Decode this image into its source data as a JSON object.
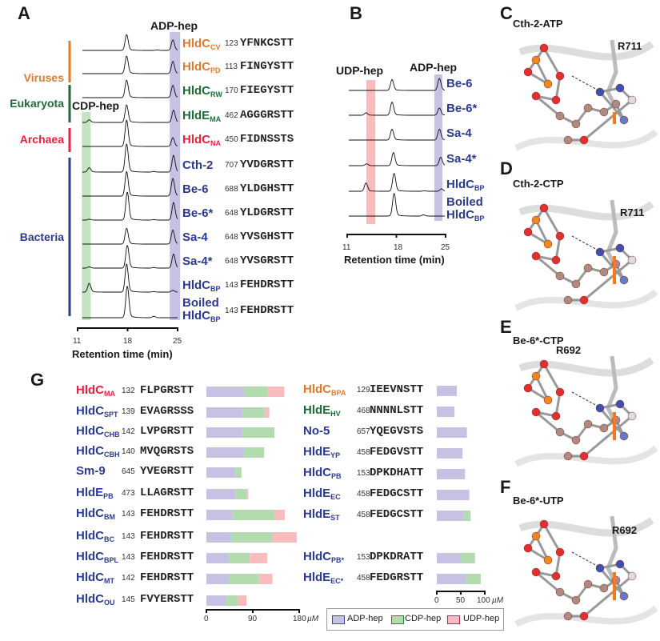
{
  "panels": {
    "a": "A",
    "b": "B",
    "c": "C",
    "d": "D",
    "e": "E",
    "f": "F",
    "g": "G"
  },
  "colors": {
    "viruses": "#e07a2e",
    "eukaryota": "#1e6b35",
    "archaea": "#e8213f",
    "bacteria": "#2b3a8c",
    "adp": "#c6c2e4",
    "cdp": "#b2dcb0",
    "udp": "#f8bcbf"
  },
  "panel_a": {
    "band_adp": "ADP-hep",
    "band_cdp": "CDP-hep",
    "groups": [
      {
        "label": "Viruses",
        "color": "viruses"
      },
      {
        "label": "Eukaryota",
        "color": "eukaryota"
      },
      {
        "label": "Archaea",
        "color": "archaea"
      },
      {
        "label": "Bacteria",
        "color": "bacteria"
      }
    ],
    "xlabel": "Retention time (min)",
    "xticks": [
      "11",
      "18",
      "25"
    ],
    "xlim": [
      11,
      25
    ],
    "rows": [
      {
        "name": "HldC",
        "sub": "CV",
        "color": "viruses",
        "pos": "123",
        "seq": "YFNKCSTT",
        "peaks": [
          [
            17.5,
            0.9
          ],
          [
            24.3,
            0.6
          ],
          [
            22,
            0.03
          ]
        ]
      },
      {
        "name": "HldC",
        "sub": "PD",
        "color": "viruses",
        "pos": "113",
        "seq": "FINGYSTT",
        "peaks": [
          [
            17.5,
            1.0
          ],
          [
            24.3,
            0.7
          ]
        ]
      },
      {
        "name": "HldC",
        "sub": "RW",
        "color": "eukaryota",
        "pos": "170",
        "seq": "FIEGYSTT",
        "peaks": [
          [
            17.5,
            1.0
          ],
          [
            24.3,
            0.7
          ]
        ]
      },
      {
        "name": "HldE",
        "sub": "MA",
        "color": "eukaryota",
        "pos": "462",
        "seq": "AGGGRSTT",
        "peaks": [
          [
            12,
            0.15
          ],
          [
            17.5,
            1.0
          ],
          [
            24.4,
            0.7
          ]
        ]
      },
      {
        "name": "HldC",
        "sub": "NA",
        "color": "archaea",
        "pos": "450",
        "seq": "FIDNSSTS",
        "peaks": [
          [
            17.5,
            1.5
          ],
          [
            24.3,
            0.5
          ]
        ]
      },
      {
        "name": "Cth-2",
        "sub": "",
        "color": "bacteria",
        "pos": "707",
        "seq": "YVDGRSTT",
        "peaks": [
          [
            12,
            0.25
          ],
          [
            17.5,
            1.6
          ],
          [
            24.4,
            0.95
          ],
          [
            21.5,
            0.03
          ]
        ]
      },
      {
        "name": "Be-6",
        "sub": "",
        "color": "bacteria",
        "pos": "688",
        "seq": "YLDGHSTT",
        "peaks": [
          [
            17.5,
            1.4
          ],
          [
            24.3,
            1.0
          ]
        ]
      },
      {
        "name": "Be-6*",
        "sub": "",
        "color": "bacteria",
        "pos": "648",
        "seq": "YLDGRSTT",
        "peaks": [
          [
            12,
            0.05
          ],
          [
            17.6,
            1.6
          ],
          [
            24.4,
            1.0
          ],
          [
            21.5,
            0.03
          ]
        ]
      },
      {
        "name": "Sa-4",
        "sub": "",
        "color": "bacteria",
        "pos": "648",
        "seq": "YVSGHSTT",
        "peaks": [
          [
            17.5,
            0.9
          ],
          [
            24.3,
            0.8
          ]
        ]
      },
      {
        "name": "Sa-4*",
        "sub": "",
        "color": "bacteria",
        "pos": "648",
        "seq": "YVSGRSTT",
        "peaks": [
          [
            12,
            0.07
          ],
          [
            17.6,
            1.3
          ],
          [
            24.4,
            0.8
          ],
          [
            21.5,
            0.03
          ]
        ]
      },
      {
        "name": "HldC",
        "sub": "BP",
        "color": "bacteria",
        "pos": "143",
        "seq": "FEHDRSTT",
        "peaks": [
          [
            12,
            0.5
          ],
          [
            17.5,
            1.6
          ],
          [
            24.3,
            0.1
          ],
          [
            21.5,
            0.03
          ]
        ]
      },
      {
        "name": "Boiled HldC",
        "sub": "BP",
        "color": "bacteria",
        "pos": "143",
        "seq": "FEHDRSTT",
        "peaks": [
          [
            17.6,
            1.8
          ],
          [
            21.5,
            0.08
          ]
        ]
      }
    ]
  },
  "panel_b": {
    "band_udp": "UDP-hep",
    "band_adp": "ADP-hep",
    "xlabel": "Retention time (min)",
    "xticks": [
      "11",
      "18",
      "25"
    ],
    "xlim": [
      11,
      25
    ],
    "rows": [
      {
        "name": "Be-6",
        "sub": "",
        "peaks": [
          [
            17.3,
            0.9
          ],
          [
            24.2,
            1.0
          ]
        ]
      },
      {
        "name": "Be-6*",
        "sub": "",
        "peaks": [
          [
            13.5,
            0.2
          ],
          [
            17.3,
            1.1
          ],
          [
            24.2,
            0.6
          ]
        ]
      },
      {
        "name": "Sa-4",
        "sub": "",
        "peaks": [
          [
            17.3,
            0.9
          ],
          [
            24.2,
            0.9
          ]
        ]
      },
      {
        "name": "Sa-4*",
        "sub": "",
        "peaks": [
          [
            13.6,
            0.15
          ],
          [
            17.5,
            1.1
          ],
          [
            24.4,
            0.7
          ]
        ]
      },
      {
        "name": "HldC",
        "sub": "BP",
        "peaks": [
          [
            13.5,
            0.7
          ],
          [
            17.6,
            1.5
          ],
          [
            22,
            0.04
          ],
          [
            24.5,
            0.2
          ]
        ]
      },
      {
        "name": "Boiled HldC",
        "sub": "BP",
        "peaks": [
          [
            17.6,
            1.9
          ],
          [
            21.9,
            0.1
          ]
        ]
      }
    ]
  },
  "structures": {
    "c": {
      "title": "Cth-2-ATP",
      "residue": "R711"
    },
    "d": {
      "title": "Cth-2-CTP",
      "residue": "R711"
    },
    "e": {
      "title": "Be-6*-CTP",
      "residue": "R692"
    },
    "f": {
      "title": "Be-6*-UTP",
      "residue": "R692"
    }
  },
  "chart_data": [
    {
      "type": "bar",
      "stacked": true,
      "orientation": "horizontal",
      "xlim": [
        0,
        180
      ],
      "xticks": [
        "0",
        "90",
        "180"
      ],
      "unit": "µM",
      "series_names": [
        "ADP-hep",
        "CDP-hep",
        "UDP-hep"
      ],
      "rows": [
        {
          "name": "HldC",
          "sub": "MA",
          "color": "archaea",
          "pos": "132",
          "seq": "FLPGRSTT",
          "values": [
            74,
            45,
            32
          ]
        },
        {
          "name": "HldC",
          "sub": "SPT",
          "color": "bacteria",
          "pos": "139",
          "seq": "EVAGRSSS",
          "values": [
            71,
            42,
            9
          ]
        },
        {
          "name": "HldC",
          "sub": "CHB",
          "color": "bacteria",
          "pos": "142",
          "seq": "LVPGRSTT",
          "values": [
            71,
            61,
            0
          ]
        },
        {
          "name": "HldC",
          "sub": "CBH",
          "color": "bacteria",
          "pos": "140",
          "seq": "MVQGRSTS",
          "values": [
            73,
            39,
            0
          ]
        },
        {
          "name": "Sm-9",
          "sub": "",
          "color": "bacteria",
          "pos": "645",
          "seq": "YVEGRSTT",
          "values": [
            56,
            12,
            0
          ]
        },
        {
          "name": "HldE",
          "sub": "PB",
          "color": "bacteria",
          "pos": "473",
          "seq": "LLAGRSTT",
          "values": [
            56,
            22,
            3
          ]
        },
        {
          "name": "HldC",
          "sub": "BM",
          "color": "bacteria",
          "pos": "143",
          "seq": "FEHDRSTT",
          "values": [
            51,
            82,
            19
          ]
        },
        {
          "name": "HldC",
          "sub": "BC",
          "color": "bacteria",
          "pos": "143",
          "seq": "FEHDRSTT",
          "values": [
            48,
            80,
            47
          ]
        },
        {
          "name": "HldC",
          "sub": "BPL",
          "color": "bacteria",
          "pos": "143",
          "seq": "FEHDRSTT",
          "values": [
            43,
            41,
            34
          ]
        },
        {
          "name": "HldC",
          "sub": "MT",
          "color": "bacteria",
          "pos": "142",
          "seq": "FEHDRSTT",
          "values": [
            43,
            59,
            26
          ]
        },
        {
          "name": "HldC",
          "sub": "OU",
          "color": "bacteria",
          "pos": "145",
          "seq": "FVYERSTT",
          "values": [
            38,
            23,
            17
          ]
        }
      ]
    },
    {
      "type": "bar",
      "stacked": true,
      "orientation": "horizontal",
      "xlim": [
        0,
        100
      ],
      "xticks": [
        "0",
        "50",
        "100"
      ],
      "unit": "µM",
      "series_names": [
        "ADP-hep",
        "CDP-hep",
        "UDP-hep"
      ],
      "rows": [
        {
          "name": "HldC",
          "sub": "BPA",
          "color": "viruses",
          "pos": "129",
          "seq": "IEEVNSTT",
          "values": [
            42,
            0,
            0
          ]
        },
        {
          "name": "HldE",
          "sub": "HV",
          "color": "eukaryota",
          "pos": "468",
          "seq": "NNNNLSTT",
          "values": [
            37,
            0,
            0
          ]
        },
        {
          "name": "No-5",
          "sub": "",
          "color": "bacteria",
          "pos": "657",
          "seq": "YQEGVSTS",
          "values": [
            63,
            0,
            0
          ]
        },
        {
          "name": "HldE",
          "sub": "YP",
          "color": "bacteria",
          "pos": "458",
          "seq": "FEDGVSTT",
          "values": [
            54,
            0,
            0
          ]
        },
        {
          "name": "HldC",
          "sub": "PB",
          "color": "bacteria",
          "pos": "153",
          "seq": "DPKDHATT",
          "values": [
            59,
            0,
            0
          ]
        },
        {
          "name": "HldE",
          "sub": "EC",
          "color": "bacteria",
          "pos": "458",
          "seq": "FEDGCSTT",
          "values": [
            68,
            0,
            0
          ]
        },
        {
          "name": "HldE",
          "sub": "ST",
          "color": "bacteria",
          "pos": "458",
          "seq": "FEDGCSTT",
          "values": [
            56,
            15,
            0
          ]
        },
        {
          "name": "HldC",
          "sub": "PB*",
          "color": "bacteria",
          "pos": "153",
          "seq": "DPKDRATT",
          "values": [
            51,
            29,
            0
          ]
        },
        {
          "name": "HldE",
          "sub": "EC*",
          "color": "bacteria",
          "pos": "458",
          "seq": "FEDGRSTT",
          "values": [
            63,
            29,
            0
          ]
        }
      ]
    }
  ],
  "legend": [
    {
      "label": "ADP-hep",
      "color": "adp"
    },
    {
      "label": "CDP-hep",
      "color": "cdp"
    },
    {
      "label": "UDP-hep",
      "color": "udp"
    }
  ]
}
